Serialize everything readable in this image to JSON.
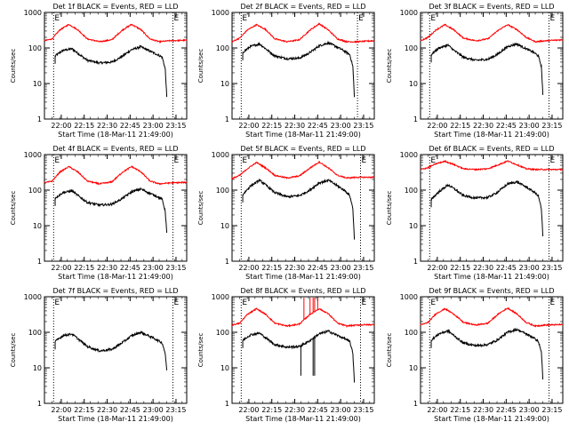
{
  "figure": {
    "x_tick_labels": [
      "22:00",
      "22:15",
      "22:30",
      "22:45",
      "23:00",
      "23:15"
    ],
    "y_tick_labels": [
      "1",
      "10",
      "100",
      "1000"
    ],
    "ylabel": "Counts/sec",
    "xlabel": "Start Time (18-Mar-11 21:49:00)",
    "left_marker": "E",
    "right_marker": "E",
    "colors": {
      "events": "#000000",
      "lld": "#ff0000"
    }
  },
  "chart_data": [
    {
      "type": "line",
      "title": "Det 1f BLACK = Events, RED = LLD",
      "x_unit": "minutes after 21:49:00",
      "y_scale": "log",
      "ylim": [
        1,
        1000
      ],
      "xlim": [
        0,
        93
      ],
      "events_range": [
        7,
        80
      ],
      "lld_range": [
        0,
        93
      ],
      "markers": [
        6,
        84
      ],
      "series": [
        {
          "name": "Events",
          "color": "#000000",
          "x": [
            7,
            12,
            18,
            22,
            28,
            36,
            44,
            50,
            57,
            63,
            68,
            74,
            77,
            79,
            80
          ],
          "y": [
            60,
            85,
            95,
            70,
            45,
            38,
            40,
            55,
            90,
            108,
            85,
            65,
            55,
            25,
            4
          ]
        },
        {
          "name": "LLD",
          "color": "#ff0000",
          "x": [
            0,
            5,
            10,
            16,
            22,
            28,
            36,
            44,
            51,
            57,
            63,
            69,
            75,
            82,
            93
          ],
          "y": [
            160,
            180,
            320,
            460,
            320,
            180,
            150,
            170,
            320,
            460,
            330,
            180,
            150,
            160,
            165
          ]
        }
      ]
    },
    {
      "type": "line",
      "title": "Det 2f BLACK = Events, RED = LLD",
      "x_unit": "minutes after 21:49:00",
      "y_scale": "log",
      "ylim": [
        1,
        1000
      ],
      "xlim": [
        0,
        93
      ],
      "events_range": [
        7,
        80
      ],
      "lld_range": [
        0,
        93
      ],
      "markers": [
        6,
        82
      ],
      "series": [
        {
          "name": "Events",
          "color": "#000000",
          "x": [
            7,
            12,
            18,
            22,
            28,
            36,
            44,
            50,
            57,
            63,
            68,
            74,
            77,
            79,
            80
          ],
          "y": [
            75,
            110,
            130,
            95,
            60,
            50,
            52,
            70,
            115,
            140,
            110,
            80,
            65,
            30,
            4
          ]
        },
        {
          "name": "LLD",
          "color": "#ff0000",
          "x": [
            0,
            5,
            10,
            16,
            22,
            28,
            36,
            44,
            51,
            57,
            63,
            69,
            75,
            82,
            93
          ],
          "y": [
            150,
            190,
            320,
            450,
            330,
            180,
            150,
            170,
            320,
            480,
            320,
            180,
            150,
            150,
            160
          ]
        }
      ]
    },
    {
      "type": "line",
      "title": "Det 3f BLACK = Events, RED = LLD",
      "x_unit": "minutes after 21:49:00",
      "y_scale": "log",
      "ylim": [
        1,
        1000
      ],
      "xlim": [
        0,
        93
      ],
      "events_range": [
        7,
        80
      ],
      "lld_range": [
        0,
        93
      ],
      "markers": [
        6,
        84
      ],
      "series": [
        {
          "name": "Events",
          "color": "#000000",
          "x": [
            7,
            12,
            18,
            22,
            28,
            36,
            44,
            50,
            57,
            63,
            68,
            74,
            77,
            79,
            80
          ],
          "y": [
            65,
            100,
            120,
            85,
            55,
            45,
            48,
            65,
            110,
            130,
            100,
            75,
            60,
            30,
            5
          ]
        },
        {
          "name": "LLD",
          "color": "#ff0000",
          "x": [
            0,
            5,
            10,
            16,
            22,
            28,
            36,
            44,
            51,
            57,
            63,
            69,
            75,
            82,
            93
          ],
          "y": [
            160,
            200,
            320,
            450,
            320,
            190,
            160,
            180,
            320,
            450,
            330,
            200,
            150,
            160,
            170
          ]
        }
      ]
    },
    {
      "type": "line",
      "title": "Det 4f BLACK = Events, RED = LLD",
      "x_unit": "minutes after 21:49:00",
      "y_scale": "log",
      "ylim": [
        1,
        1000
      ],
      "xlim": [
        0,
        93
      ],
      "events_range": [
        7,
        80
      ],
      "lld_range": [
        0,
        93
      ],
      "markers": [
        6,
        84
      ],
      "series": [
        {
          "name": "Events",
          "color": "#000000",
          "x": [
            7,
            12,
            18,
            22,
            28,
            36,
            44,
            50,
            57,
            63,
            68,
            74,
            77,
            79,
            80
          ],
          "y": [
            60,
            85,
            95,
            70,
            45,
            38,
            40,
            55,
            90,
            108,
            85,
            65,
            55,
            25,
            6
          ]
        },
        {
          "name": "LLD",
          "color": "#ff0000",
          "x": [
            0,
            5,
            10,
            16,
            22,
            28,
            36,
            44,
            51,
            57,
            63,
            69,
            75,
            82,
            93
          ],
          "y": [
            160,
            180,
            320,
            460,
            320,
            180,
            150,
            170,
            320,
            460,
            330,
            180,
            150,
            160,
            165
          ]
        }
      ]
    },
    {
      "type": "line",
      "title": "Det 5f BLACK = Events, RED = LLD",
      "x_unit": "minutes after 21:49:00",
      "y_scale": "log",
      "ylim": [
        1,
        1000
      ],
      "xlim": [
        0,
        93
      ],
      "events_range": [
        7,
        80
      ],
      "lld_range": [
        0,
        93
      ],
      "markers": [
        6,
        84
      ],
      "series": [
        {
          "name": "Events",
          "color": "#000000",
          "x": [
            7,
            12,
            18,
            22,
            28,
            36,
            44,
            50,
            57,
            63,
            68,
            74,
            77,
            79,
            80
          ],
          "y": [
            75,
            130,
            190,
            140,
            85,
            65,
            70,
            95,
            160,
            190,
            140,
            95,
            70,
            30,
            4
          ]
        },
        {
          "name": "LLD",
          "color": "#ff0000",
          "x": [
            0,
            5,
            10,
            16,
            22,
            28,
            36,
            44,
            51,
            57,
            63,
            69,
            75,
            82,
            93
          ],
          "y": [
            210,
            260,
            400,
            600,
            420,
            260,
            220,
            250,
            420,
            620,
            420,
            260,
            220,
            230,
            230
          ]
        }
      ]
    },
    {
      "type": "line",
      "title": "Det 6f BLACK = Events, RED = LLD",
      "x_unit": "minutes after 21:49:00",
      "y_scale": "log",
      "ylim": [
        1,
        1000
      ],
      "xlim": [
        0,
        93
      ],
      "events_range": [
        7,
        80
      ],
      "lld_range": [
        0,
        93
      ],
      "markers": [
        6,
        84
      ],
      "series": [
        {
          "name": "Events",
          "color": "#000000",
          "x": [
            7,
            12,
            18,
            22,
            28,
            36,
            44,
            50,
            57,
            63,
            68,
            74,
            77,
            79,
            80
          ],
          "y": [
            55,
            90,
            140,
            110,
            70,
            60,
            62,
            85,
            150,
            170,
            130,
            90,
            70,
            30,
            5
          ]
        },
        {
          "name": "LLD",
          "color": "#ff0000",
          "x": [
            0,
            5,
            10,
            16,
            22,
            28,
            36,
            44,
            51,
            57,
            63,
            69,
            75,
            82,
            93
          ],
          "y": [
            380,
            430,
            550,
            650,
            520,
            400,
            380,
            400,
            520,
            660,
            520,
            400,
            380,
            380,
            380
          ]
        }
      ]
    },
    {
      "type": "line",
      "title": "Det 7f BLACK = Events, RED = LLD",
      "x_unit": "minutes after 21:49:00",
      "y_scale": "log",
      "ylim": [
        1,
        1000
      ],
      "xlim": [
        0,
        93
      ],
      "events_range": [
        7,
        80
      ],
      "markers": [
        6,
        84
      ],
      "series": [
        {
          "name": "Events",
          "color": "#000000",
          "x": [
            7,
            12,
            18,
            22,
            28,
            36,
            44,
            50,
            57,
            63,
            68,
            74,
            77,
            79,
            80
          ],
          "y": [
            55,
            80,
            90,
            65,
            40,
            30,
            33,
            48,
            80,
            100,
            80,
            60,
            50,
            25,
            8
          ]
        }
      ]
    },
    {
      "type": "line",
      "title": "Det 8f BLACK = Events, RED = LLD",
      "x_unit": "minutes after 21:49:00",
      "y_scale": "log",
      "ylim": [
        1,
        1000
      ],
      "xlim": [
        0,
        93
      ],
      "events_range": [
        7,
        80
      ],
      "lld_range": [
        0,
        93
      ],
      "markers": [
        6,
        84
      ],
      "spikes": {
        "lld": [
          47,
          51,
          53,
          54,
          56
        ],
        "events_dips": [
          45,
          53,
          54
        ]
      },
      "series": [
        {
          "name": "Events",
          "color": "#000000",
          "x": [
            7,
            12,
            18,
            22,
            28,
            36,
            44,
            50,
            57,
            63,
            68,
            74,
            77,
            79,
            80
          ],
          "y": [
            60,
            85,
            95,
            70,
            45,
            38,
            40,
            55,
            90,
            108,
            85,
            65,
            55,
            25,
            4
          ]
        },
        {
          "name": "LLD",
          "color": "#ff0000",
          "x": [
            0,
            5,
            10,
            16,
            22,
            28,
            36,
            44,
            51,
            57,
            63,
            69,
            75,
            82,
            93
          ],
          "y": [
            160,
            180,
            320,
            460,
            320,
            180,
            150,
            170,
            320,
            460,
            330,
            180,
            150,
            160,
            165
          ]
        }
      ]
    },
    {
      "type": "line",
      "title": "Det 9f BLACK = Events, RED = LLD",
      "x_unit": "minutes after 21:49:00",
      "y_scale": "log",
      "ylim": [
        1,
        1000
      ],
      "xlim": [
        0,
        93
      ],
      "events_range": [
        7,
        80
      ],
      "lld_range": [
        0,
        93
      ],
      "markers": [
        6,
        84
      ],
      "series": [
        {
          "name": "Events",
          "color": "#000000",
          "x": [
            7,
            12,
            18,
            22,
            28,
            36,
            44,
            50,
            57,
            63,
            68,
            74,
            77,
            79,
            80
          ],
          "y": [
            60,
            90,
            110,
            80,
            50,
            42,
            45,
            60,
            100,
            120,
            95,
            70,
            55,
            28,
            5
          ]
        },
        {
          "name": "LLD",
          "color": "#ff0000",
          "x": [
            0,
            5,
            10,
            16,
            22,
            28,
            36,
            44,
            51,
            57,
            63,
            69,
            75,
            82,
            93
          ],
          "y": [
            160,
            190,
            330,
            460,
            320,
            190,
            160,
            180,
            330,
            480,
            330,
            190,
            150,
            160,
            165
          ]
        }
      ]
    }
  ]
}
